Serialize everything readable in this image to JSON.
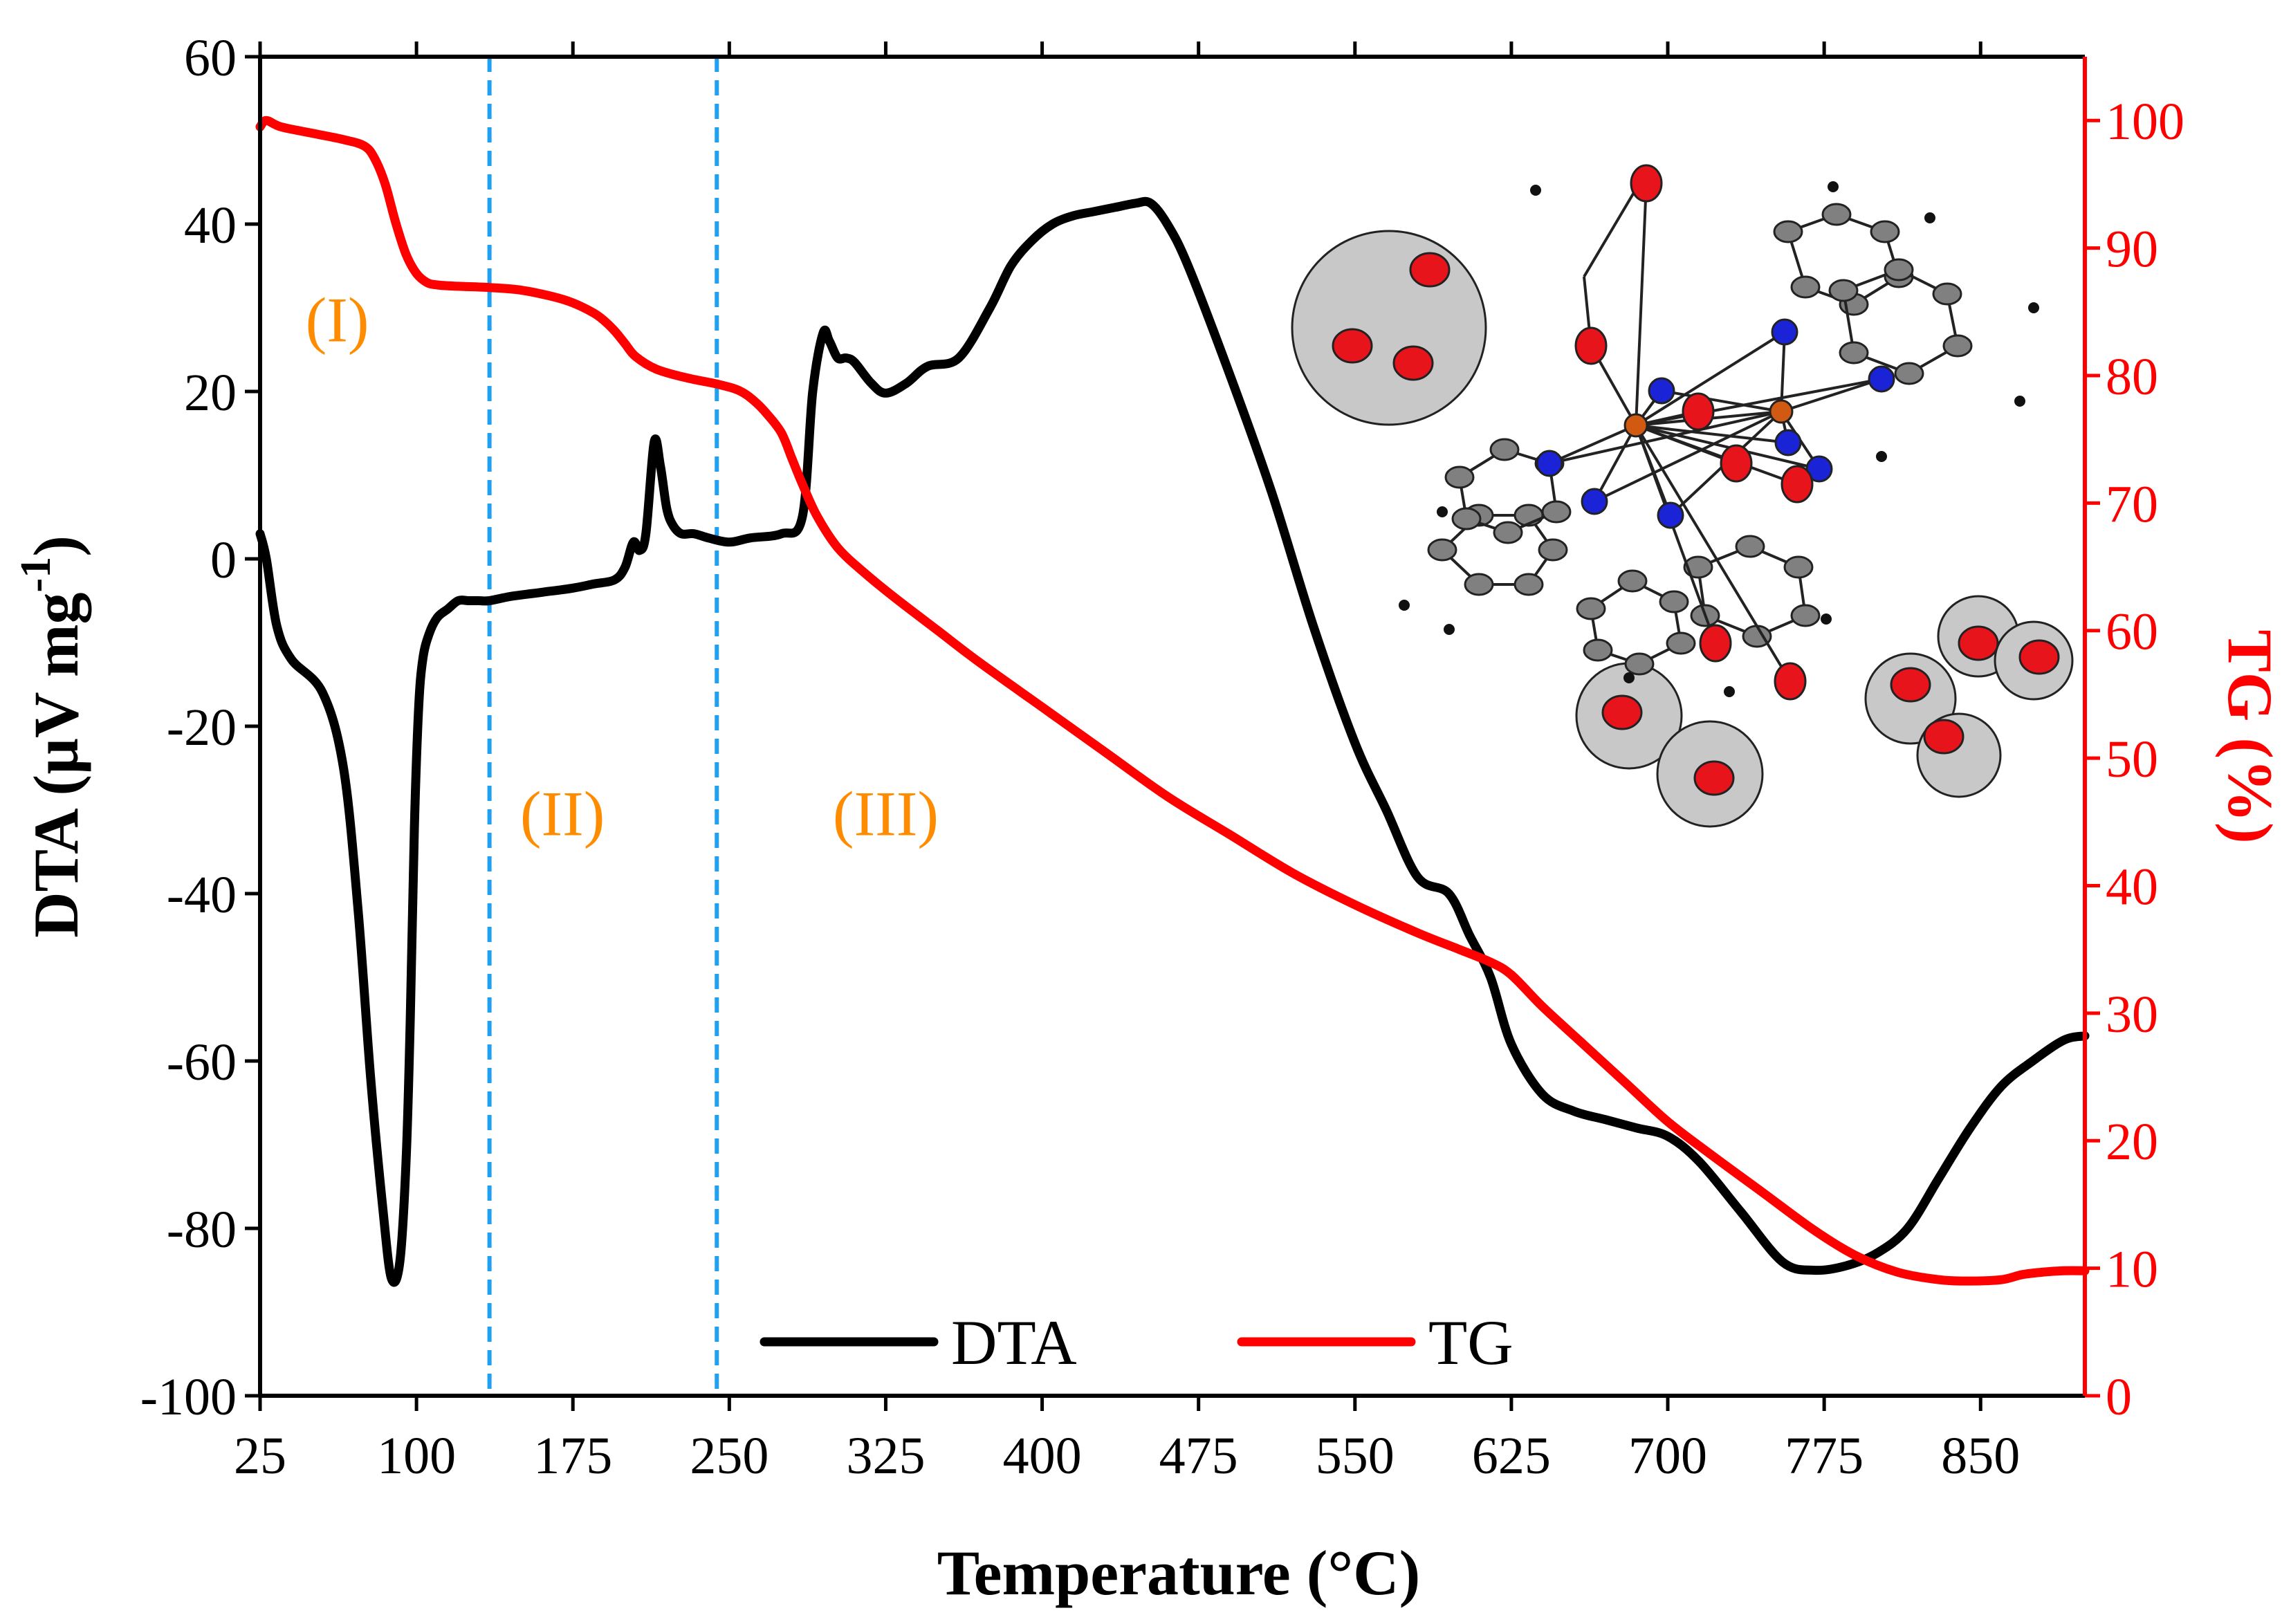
{
  "chart_data": {
    "type": "line",
    "title": "",
    "xlabel": "Temperature (°C)",
    "ylabel_left": "DTA (µV mg",
    "ylabel_left_sup": "-1",
    "ylabel_left_close": ")",
    "ylabel_right": "TG (%)",
    "xlim": [
      25,
      900
    ],
    "ylim_left": [
      -100,
      60
    ],
    "ylim_right": [
      0,
      105
    ],
    "x_ticks": [
      25,
      100,
      175,
      250,
      325,
      400,
      475,
      550,
      625,
      700,
      775,
      850
    ],
    "y_left_ticks": [
      -100,
      -80,
      -60,
      -40,
      -20,
      0,
      20,
      40,
      60
    ],
    "y_right_ticks": [
      0,
      10,
      20,
      30,
      40,
      50,
      60,
      70,
      80,
      90,
      100
    ],
    "colors": {
      "dta": "#000000",
      "tg": "#ff0000",
      "divider": "#1ea1f2",
      "region": "#ff8c00",
      "atom_o": "#e8141c",
      "atom_n": "#1a24d6",
      "atom_cu": "#d05a12",
      "atom_c": "#808080",
      "halo": "#c8c8c8"
    },
    "dividers": [
      135,
      244
    ],
    "regions": [
      {
        "label": "(I)",
        "x": 62,
        "y": 26
      },
      {
        "label": "(II)",
        "x": 170,
        "y": -33
      },
      {
        "label": "(III)",
        "x": 325,
        "y": -33
      }
    ],
    "legend": {
      "location": "bottom-center",
      "entries": [
        "DTA",
        "TG"
      ]
    },
    "series": [
      {
        "name": "DTA",
        "axis": "left",
        "x": [
          25,
          28,
          33,
          40,
          55,
          65,
          72,
          78,
          84,
          88,
          92,
          95,
          97,
          99,
          101,
          103,
          106,
          110,
          115,
          120,
          125,
          130,
          135,
          145,
          160,
          175,
          185,
          195,
          200,
          204,
          207,
          210,
          214,
          217,
          220,
          223,
          227,
          233,
          240,
          250,
          260,
          275,
          285,
          290,
          295,
          298,
          302,
          306,
          310,
          318,
          325,
          335,
          345,
          360,
          375,
          385,
          395,
          405,
          415,
          425,
          435,
          445,
          452,
          460,
          470,
          490,
          510,
          530,
          550,
          565,
          580,
          595,
          605,
          615,
          625,
          640,
          655,
          670,
          685,
          700,
          715,
          735,
          755,
          770,
          785,
          800,
          815,
          830,
          845,
          860,
          875,
          890,
          900
        ],
        "y": [
          3,
          0,
          -8,
          -12,
          -16,
          -25,
          -42,
          -62,
          -78,
          -86,
          -84,
          -72,
          -55,
          -32,
          -18,
          -12,
          -9,
          -7,
          -6,
          -5,
          -5,
          -5,
          -5,
          -4.5,
          -4,
          -3.5,
          -3,
          -2.5,
          -1,
          2,
          1,
          3,
          14,
          11,
          6,
          4,
          3,
          3,
          2.5,
          2,
          2.5,
          3,
          5,
          20,
          27,
          26,
          24,
          24,
          23.5,
          21,
          19.8,
          21,
          23,
          24,
          30,
          35,
          38,
          40,
          41,
          41.5,
          42,
          42.5,
          42.5,
          40,
          35,
          22,
          8,
          -8,
          -22,
          -30,
          -38,
          -40,
          -45,
          -50,
          -58,
          -64,
          -66,
          -67,
          -68,
          -69,
          -72,
          -78,
          -84,
          -85,
          -84.5,
          -83,
          -80,
          -74,
          -68,
          -63,
          -60,
          -57.5,
          -57
        ]
      },
      {
        "name": "TG",
        "axis": "right",
        "x": [
          25,
          28,
          35,
          50,
          65,
          75,
          80,
          85,
          90,
          95,
          100,
          105,
          110,
          120,
          135,
          150,
          165,
          175,
          185,
          190,
          195,
          200,
          205,
          215,
          230,
          245,
          255,
          262,
          268,
          275,
          280,
          285,
          292,
          302,
          315,
          330,
          350,
          370,
          400,
          430,
          460,
          490,
          520,
          550,
          580,
          600,
          615,
          625,
          640,
          660,
          680,
          700,
          720,
          745,
          770,
          790,
          810,
          830,
          845,
          860,
          870,
          880,
          890,
          900
        ],
        "y": [
          99.5,
          100,
          99.5,
          99,
          98.5,
          98,
          97,
          95,
          92,
          89.5,
          88,
          87.3,
          87.1,
          87,
          86.9,
          86.7,
          86.2,
          85.7,
          84.9,
          84.3,
          83.5,
          82.5,
          81.5,
          80.5,
          79.8,
          79.3,
          78.8,
          78,
          77,
          75.5,
          73.5,
          71.5,
          69,
          66.5,
          64.5,
          62.5,
          60,
          57.5,
          54,
          50.5,
          47,
          44,
          41,
          38.5,
          36.3,
          35,
          34,
          33,
          30.5,
          27.5,
          24.5,
          21.5,
          19,
          16,
          13,
          11,
          9.7,
          9.1,
          9,
          9.1,
          9.5,
          9.7,
          9.8,
          9.8
        ]
      }
    ]
  }
}
